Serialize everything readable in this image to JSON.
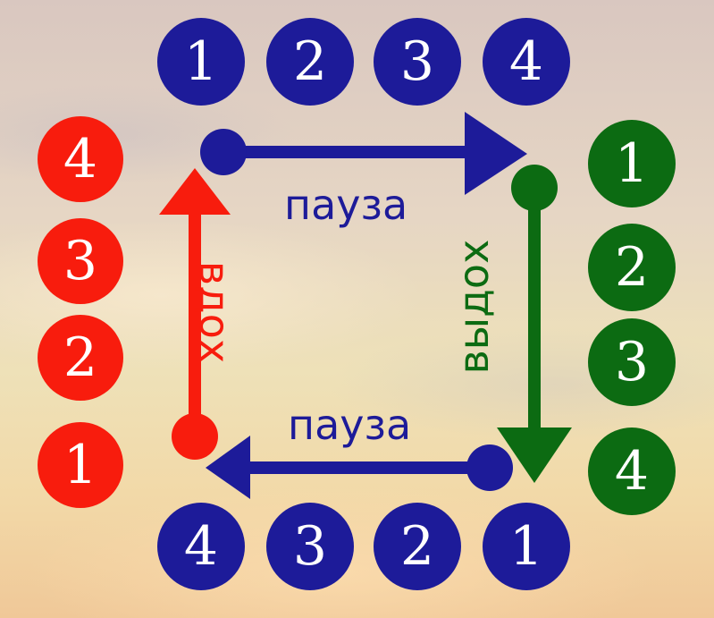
{
  "top_counts": [
    "1",
    "2",
    "3",
    "4"
  ],
  "bottom_counts": [
    "4",
    "3",
    "2",
    "1"
  ],
  "left_counts": [
    "4",
    "3",
    "2",
    "1"
  ],
  "right_counts": [
    "1",
    "2",
    "3",
    "4"
  ],
  "labels": {
    "pause_top": "пауза",
    "pause_bottom": "пауза",
    "inhale": "вдох",
    "exhale": "выдох"
  },
  "colors": {
    "blue": "#1d1b99",
    "red": "#f81c0d",
    "green": "#0c6b12"
  }
}
